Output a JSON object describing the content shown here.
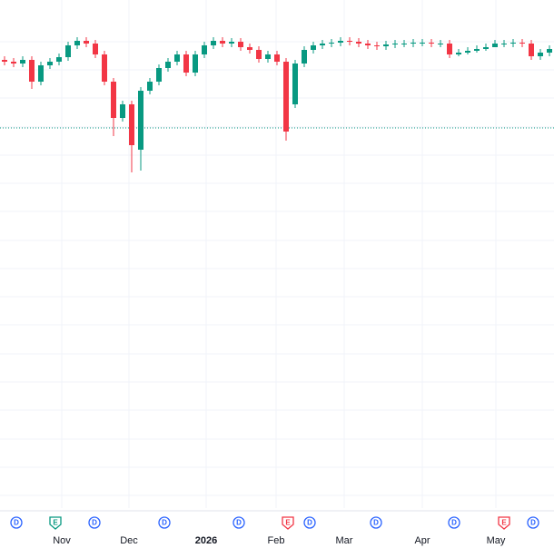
{
  "chart_data": {
    "type": "candlestick",
    "open": [
      494,
      492,
      490,
      494,
      470,
      488,
      492,
      497,
      510,
      515,
      512,
      500,
      470,
      430,
      445,
      395,
      460,
      470,
      485,
      492,
      500,
      480,
      500,
      510,
      515,
      512,
      514,
      508,
      505,
      495,
      500,
      492,
      445,
      490,
      505,
      510,
      512,
      513,
      515,
      514,
      512,
      510,
      509,
      511,
      512,
      512,
      513,
      513,
      512,
      512,
      500,
      502,
      504,
      506,
      508,
      512,
      512,
      513,
      512,
      498,
      502
    ],
    "high": [
      498,
      496,
      498,
      498,
      492,
      496,
      501,
      514,
      519,
      519,
      516,
      504,
      474,
      449,
      449,
      464,
      474,
      489,
      496,
      504,
      504,
      504,
      514,
      519,
      519,
      518,
      518,
      512,
      509,
      504,
      504,
      496,
      494,
      509,
      514,
      516,
      517,
      519,
      519,
      518,
      516,
      514,
      515,
      516,
      516,
      517,
      517,
      517,
      516,
      516,
      506,
      508,
      510,
      512,
      516,
      516,
      517,
      517,
      516,
      506,
      510
    ],
    "low": [
      488,
      486,
      486,
      462,
      466,
      484,
      488,
      493,
      506,
      508,
      496,
      466,
      410,
      426,
      370,
      372,
      456,
      466,
      481,
      488,
      476,
      476,
      496,
      506,
      508,
      508,
      504,
      501,
      491,
      491,
      488,
      405,
      441,
      486,
      501,
      506,
      508,
      509,
      510,
      508,
      506,
      505,
      505,
      507,
      508,
      508,
      509,
      508,
      508,
      496,
      498,
      500,
      502,
      504,
      508,
      508,
      508,
      508,
      494,
      494,
      498
    ],
    "close": [
      492,
      490,
      494,
      470,
      488,
      492,
      497,
      510,
      515,
      512,
      500,
      470,
      430,
      445,
      400,
      460,
      470,
      485,
      492,
      500,
      480,
      500,
      510,
      515,
      512,
      514,
      508,
      505,
      495,
      500,
      492,
      415,
      490,
      505,
      510,
      512,
      513,
      515,
      514,
      512,
      510,
      509,
      511,
      512,
      512,
      513,
      513,
      512,
      512,
      500,
      502,
      504,
      506,
      508,
      512,
      512,
      513,
      512,
      498,
      502,
      506
    ],
    "up_color": "#089981",
    "down_color": "#f23645",
    "ylim": [
      0,
      560
    ],
    "xlim": [
      -0.5,
      60.5
    ],
    "y_grid": [
      514,
      483,
      452,
      420,
      389,
      358,
      327,
      295,
      264,
      233,
      202,
      170,
      139,
      108,
      76,
      45,
      14
    ],
    "xticks": [
      {
        "value": 6.3,
        "label": "Nov"
      },
      {
        "value": 13.7,
        "label": "Dec"
      },
      {
        "value": 22.2,
        "label": "2026"
      },
      {
        "value": 29.9,
        "label": "Feb"
      },
      {
        "value": 37.4,
        "label": "Mar"
      },
      {
        "value": 46,
        "label": "Apr"
      },
      {
        "value": 54.1,
        "label": "May"
      }
    ],
    "reference_line": {
      "value": 419,
      "color": "#089981"
    },
    "events": [
      {
        "x": 1.3,
        "label": "D",
        "color": "#2962ff"
      },
      {
        "x": 5.6,
        "label": "E",
        "color": "#089981"
      },
      {
        "x": 9.9,
        "label": "D",
        "color": "#2962ff"
      },
      {
        "x": 17.6,
        "label": "D",
        "color": "#2962ff"
      },
      {
        "x": 25.8,
        "label": "D",
        "color": "#2962ff"
      },
      {
        "x": 31.2,
        "label": "E",
        "color": "#f23645"
      },
      {
        "x": 33.6,
        "label": "D",
        "color": "#2962ff"
      },
      {
        "x": 40.9,
        "label": "D",
        "color": "#2962ff"
      },
      {
        "x": 49.5,
        "label": "D",
        "color": "#2962ff"
      },
      {
        "x": 55,
        "label": "E",
        "color": "#f23645"
      },
      {
        "x": 58.2,
        "label": "D",
        "color": "#2962ff"
      }
    ]
  }
}
